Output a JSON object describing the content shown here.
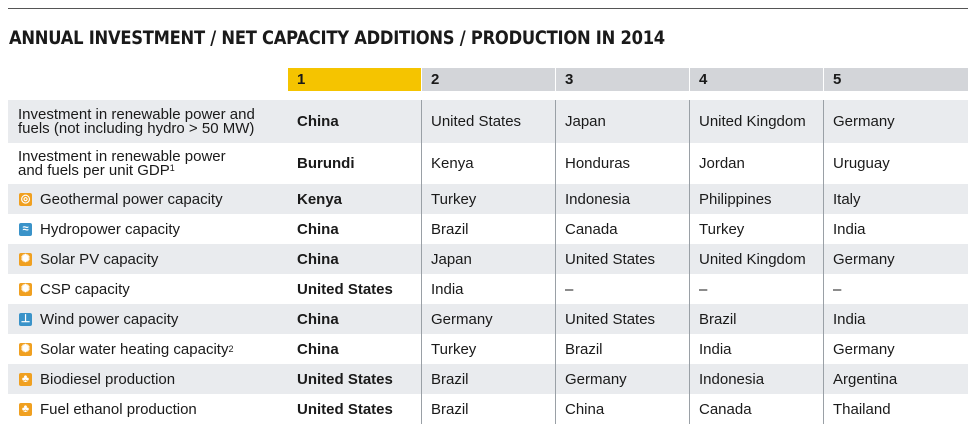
{
  "title": "ANNUAL INVESTMENT / NET CAPACITY ADDITIONS / PRODUCTION IN 2014",
  "columns": [
    "1",
    "2",
    "3",
    "4",
    "5"
  ],
  "rows": [
    {
      "label_line1": "Investment in renewable power and",
      "label_line2": "fuels (not including hydro > 50 MW)",
      "sup": "",
      "icon": "",
      "icon_name": "",
      "values": [
        "China",
        "United States",
        "Japan",
        "United Kingdom",
        "Germany"
      ]
    },
    {
      "label_line1": "Investment in renewable power",
      "label_line2": "and fuels per unit GDP",
      "sup": "1",
      "icon": "",
      "icon_name": "",
      "values": [
        "Burundi",
        "Kenya",
        "Honduras",
        "Jordan",
        "Uruguay"
      ]
    },
    {
      "label": "Geothermal power capacity",
      "sup": "",
      "icon": "◎",
      "icon_name": "geothermal-icon",
      "icon_color": "#f0a020",
      "values": [
        "Kenya",
        "Turkey",
        "Indonesia",
        "Philippines",
        "Italy"
      ]
    },
    {
      "label": "Hydropower capacity",
      "sup": "",
      "icon": "≈",
      "icon_name": "hydropower-icon",
      "icon_color": "#3a93c9",
      "values": [
        "China",
        "Brazil",
        "Canada",
        "Turkey",
        "India"
      ]
    },
    {
      "label": "Solar PV capacity",
      "sup": "",
      "icon": "✺",
      "icon_name": "solar-pv-icon",
      "icon_color": "#f0a020",
      "values": [
        "China",
        "Japan",
        "United States",
        "United Kingdom",
        "Germany"
      ]
    },
    {
      "label": "CSP capacity",
      "sup": "",
      "icon": "✺",
      "icon_name": "csp-icon",
      "icon_color": "#f0a020",
      "values": [
        "United States",
        "India",
        "–",
        "–",
        "–"
      ]
    },
    {
      "label": "Wind power capacity",
      "sup": "",
      "icon": "⊥",
      "icon_name": "wind-power-icon",
      "icon_color": "#3a93c9",
      "values": [
        "China",
        "Germany",
        "United States",
        "Brazil",
        "India"
      ]
    },
    {
      "label": "Solar water heating capacity",
      "sup": "2",
      "icon": "✺",
      "icon_name": "solar-water-heating-icon",
      "icon_color": "#f0a020",
      "values": [
        "China",
        "Turkey",
        "Brazil",
        "India",
        "Germany"
      ]
    },
    {
      "label": "Biodiesel production",
      "sup": "",
      "icon": "♣",
      "icon_name": "biodiesel-icon",
      "icon_color": "#f0a020",
      "values": [
        "United States",
        "Brazil",
        "Germany",
        "Indonesia",
        "Argentina"
      ]
    },
    {
      "label": "Fuel ethanol production",
      "sup": "",
      "icon": "♣",
      "icon_name": "fuel-ethanol-icon",
      "icon_color": "#f0a020",
      "values": [
        "United States",
        "Brazil",
        "China",
        "Canada",
        "Thailand"
      ]
    }
  ]
}
